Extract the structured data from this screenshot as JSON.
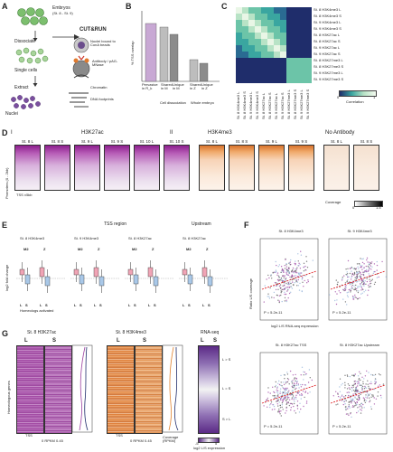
{
  "panels": {
    "A": {
      "letter": "A",
      "embryos": "Embryos",
      "stage_note": "(St. 8 - St. 9)",
      "dissociate": "Dissociate",
      "single_cells": "Single cells",
      "extract": "Extract",
      "nuclei": "Nuclei",
      "cutrun": "CUT&RUN",
      "nuclei_bound": "Nuclei bound to ConA beads",
      "antibody": "Antibody / pAG-MNase",
      "chromatin": "Chromatin",
      "dna_footprints": "DNA footprints"
    },
    "B": {
      "letter": "B",
      "ylabel": "% TSS overlap",
      "xlabels": [
        "Pervasive in R_k",
        "Shared in M",
        "Unique in M",
        "Shared in Z",
        "Unique in Z"
      ],
      "group1": "Cell dissociation",
      "group2": "Whole embryo"
    },
    "C": {
      "letter": "C",
      "row_labels": [
        "St. 8 H3K4me3 L",
        "St. 8 H3K4me3 S",
        "St. 9 H3K4me3 L",
        "St. 9 H3K4me3 S",
        "St. 8 H3K27ac L",
        "St. 8 H3K27ac S",
        "St. 9 H3K27ac L",
        "St. 9 H3K27ac S",
        "St. 8 H3K27me3 L",
        "St. 8 H3K27me3 S",
        "St. 9 H3K27me3 L",
        "St. 9 H3K27me3 S"
      ],
      "legend_label": "Correlation",
      "legend_min": "0",
      "legend_max": "1"
    },
    "D": {
      "letter": "D",
      "ylabel": "Promoters (0 - 2kb)",
      "group_i": "I",
      "group_ii": "II",
      "h3k27ac": "H3K27ac",
      "h3k4me3": "H3K4me3",
      "no_antibody": "No Antibody",
      "col_labels": [
        "St. 8 L",
        "St. 8 S",
        "St. 9 L",
        "St. 9 S",
        "St. 10 L",
        "St. 10 S",
        "St. 8 L",
        "St. 8 S",
        "St. 9 L",
        "St. 9 S",
        "St. 8 L",
        "St. 8 S"
      ],
      "tss": "TSS ±5kb",
      "coverage": "Coverage",
      "cov_min": "0",
      "cov_max": "1.5"
    },
    "E": {
      "letter": "E",
      "ylabel": "log2 fold change",
      "header_tss": "TSS region",
      "header_up": "Upstream",
      "groups": [
        "St. 8 H3K4me3",
        "St. 9 H3K4me3",
        "St. 8 H3K27ac",
        "St. 8 H3K27ac"
      ],
      "mz": [
        "M2",
        "Z"
      ],
      "xlabel": "Homeologs activated",
      "ls": [
        "L",
        "S"
      ]
    },
    "F": {
      "letter": "F",
      "ylabel": "Ratio L/S coverage",
      "xlabel": "log2 L/S RNA-seq expression",
      "titles": [
        "St. 8 H3K4me3",
        "St. 9 H3K4me3",
        "St. 8 H3K27ac TSS",
        "St. 8 H3K27ac Upstream"
      ],
      "r_note": "P = 5.2e-11"
    },
    "G": {
      "letter": "G",
      "ylabel": "Homeologous genes",
      "h3k27ac": "St. 8 H3K27ac",
      "h3k4me3": "St. 8 H3K4me3",
      "rnaseq": "RNA-seq",
      "L": "L",
      "S": "S",
      "tss_left": "TSS",
      "rpkm_left": "0 RPKM 0.45",
      "tss_mid": "TSS",
      "rpkm_mid": "0 RPKM 0.45",
      "coverage": "Coverage (RPKM)",
      "l_gt_s": "L > S",
      "l_eq_s": "L = S",
      "s_gt_l": "S > L",
      "rna_scale": "log2 L/S expression",
      "rna_min": "-5",
      "rna_max": "5"
    }
  },
  "colors": {
    "purple": "#9b3fa0",
    "orange": "#e0822e",
    "pink": "#f0a4b5",
    "blue": "#a9c8e8",
    "teal": "#3aa6a0",
    "navy": "#1f2d6b",
    "red": "#e0262a"
  }
}
